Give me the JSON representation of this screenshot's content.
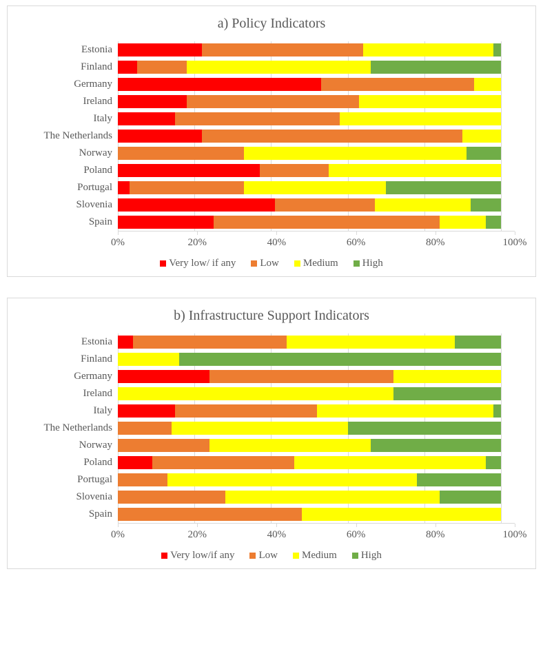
{
  "axis": {
    "tick_positions": [
      0,
      20,
      40,
      60,
      80,
      100
    ],
    "tick_labels": [
      "0%",
      "20%",
      "40%",
      "60%",
      "80%",
      "100%"
    ]
  },
  "colors": {
    "very_low": "#ff0000",
    "low": "#ed7d31",
    "medium": "#ffff00",
    "high": "#70ad47",
    "grid": "#d9d9d9",
    "text": "#595959",
    "background": "#ffffff"
  },
  "style": {
    "label_fontsize": 15,
    "title_fontsize": 20,
    "bar_row_height": 25,
    "bar_gap_pct": 0.24,
    "swatch_size": 9,
    "font_family": "Times New Roman"
  },
  "charts": [
    {
      "title": "a) Policy Indicators",
      "legend": [
        "Very low/ if any",
        "Low",
        "Medium",
        "High"
      ],
      "countries": [
        "Estonia",
        "Finland",
        "Germany",
        "Ireland",
        "Italy",
        "The Netherlands",
        "Norway",
        "Poland",
        "Portugal",
        "Slovenia",
        "Spain"
      ],
      "series": [
        {
          "label": "Estonia",
          "very_low": 22,
          "low": 42,
          "medium": 34,
          "high": 2
        },
        {
          "label": "Finland",
          "very_low": 5,
          "low": 13,
          "medium": 48,
          "high": 34
        },
        {
          "label": "Germany",
          "very_low": 53,
          "low": 40,
          "medium": 7,
          "high": 0
        },
        {
          "label": "Ireland",
          "very_low": 18,
          "low": 45,
          "medium": 37,
          "high": 0
        },
        {
          "label": "Italy",
          "very_low": 15,
          "low": 43,
          "medium": 42,
          "high": 0
        },
        {
          "label": "The Netherlands",
          "very_low": 22,
          "low": 68,
          "medium": 10,
          "high": 0
        },
        {
          "label": "Norway",
          "very_low": 0,
          "low": 33,
          "medium": 58,
          "high": 9
        },
        {
          "label": "Poland",
          "very_low": 37,
          "low": 18,
          "medium": 45,
          "high": 0
        },
        {
          "label": "Portugal",
          "very_low": 3,
          "low": 30,
          "medium": 37,
          "high": 30
        },
        {
          "label": "Slovenia",
          "very_low": 41,
          "low": 26,
          "medium": 25,
          "high": 8
        },
        {
          "label": "Spain",
          "very_low": 25,
          "low": 59,
          "medium": 12,
          "high": 4
        }
      ]
    },
    {
      "title": "b) Infrastructure Support Indicators",
      "legend": [
        "Very low/if any",
        "Low",
        "Medium",
        "High"
      ],
      "countries": [
        "Estonia",
        "Finland",
        "Germany",
        "Ireland",
        "Italy",
        "The Netherlands",
        "Norway",
        "Poland",
        "Portugal",
        "Slovenia",
        "Spain"
      ],
      "series": [
        {
          "label": "Estonia",
          "very_low": 4,
          "low": 40,
          "medium": 44,
          "high": 12
        },
        {
          "label": "Finland",
          "very_low": 0,
          "low": 0,
          "medium": 16,
          "high": 84
        },
        {
          "label": "Germany",
          "very_low": 24,
          "low": 48,
          "medium": 28,
          "high": 0
        },
        {
          "label": "Ireland",
          "very_low": 0,
          "low": 0,
          "medium": 72,
          "high": 28
        },
        {
          "label": "Italy",
          "very_low": 15,
          "low": 37,
          "medium": 46,
          "high": 2
        },
        {
          "label": "The Netherlands",
          "very_low": 0,
          "low": 14,
          "medium": 46,
          "high": 40
        },
        {
          "label": "Norway",
          "very_low": 0,
          "low": 24,
          "medium": 42,
          "high": 34
        },
        {
          "label": "Poland",
          "very_low": 9,
          "low": 37,
          "medium": 50,
          "high": 4
        },
        {
          "label": "Portugal",
          "very_low": 0,
          "low": 13,
          "medium": 65,
          "high": 22
        },
        {
          "label": "Slovenia",
          "very_low": 0,
          "low": 28,
          "medium": 56,
          "high": 16
        },
        {
          "label": "Spain",
          "very_low": 0,
          "low": 48,
          "medium": 52,
          "high": 0
        }
      ]
    }
  ]
}
